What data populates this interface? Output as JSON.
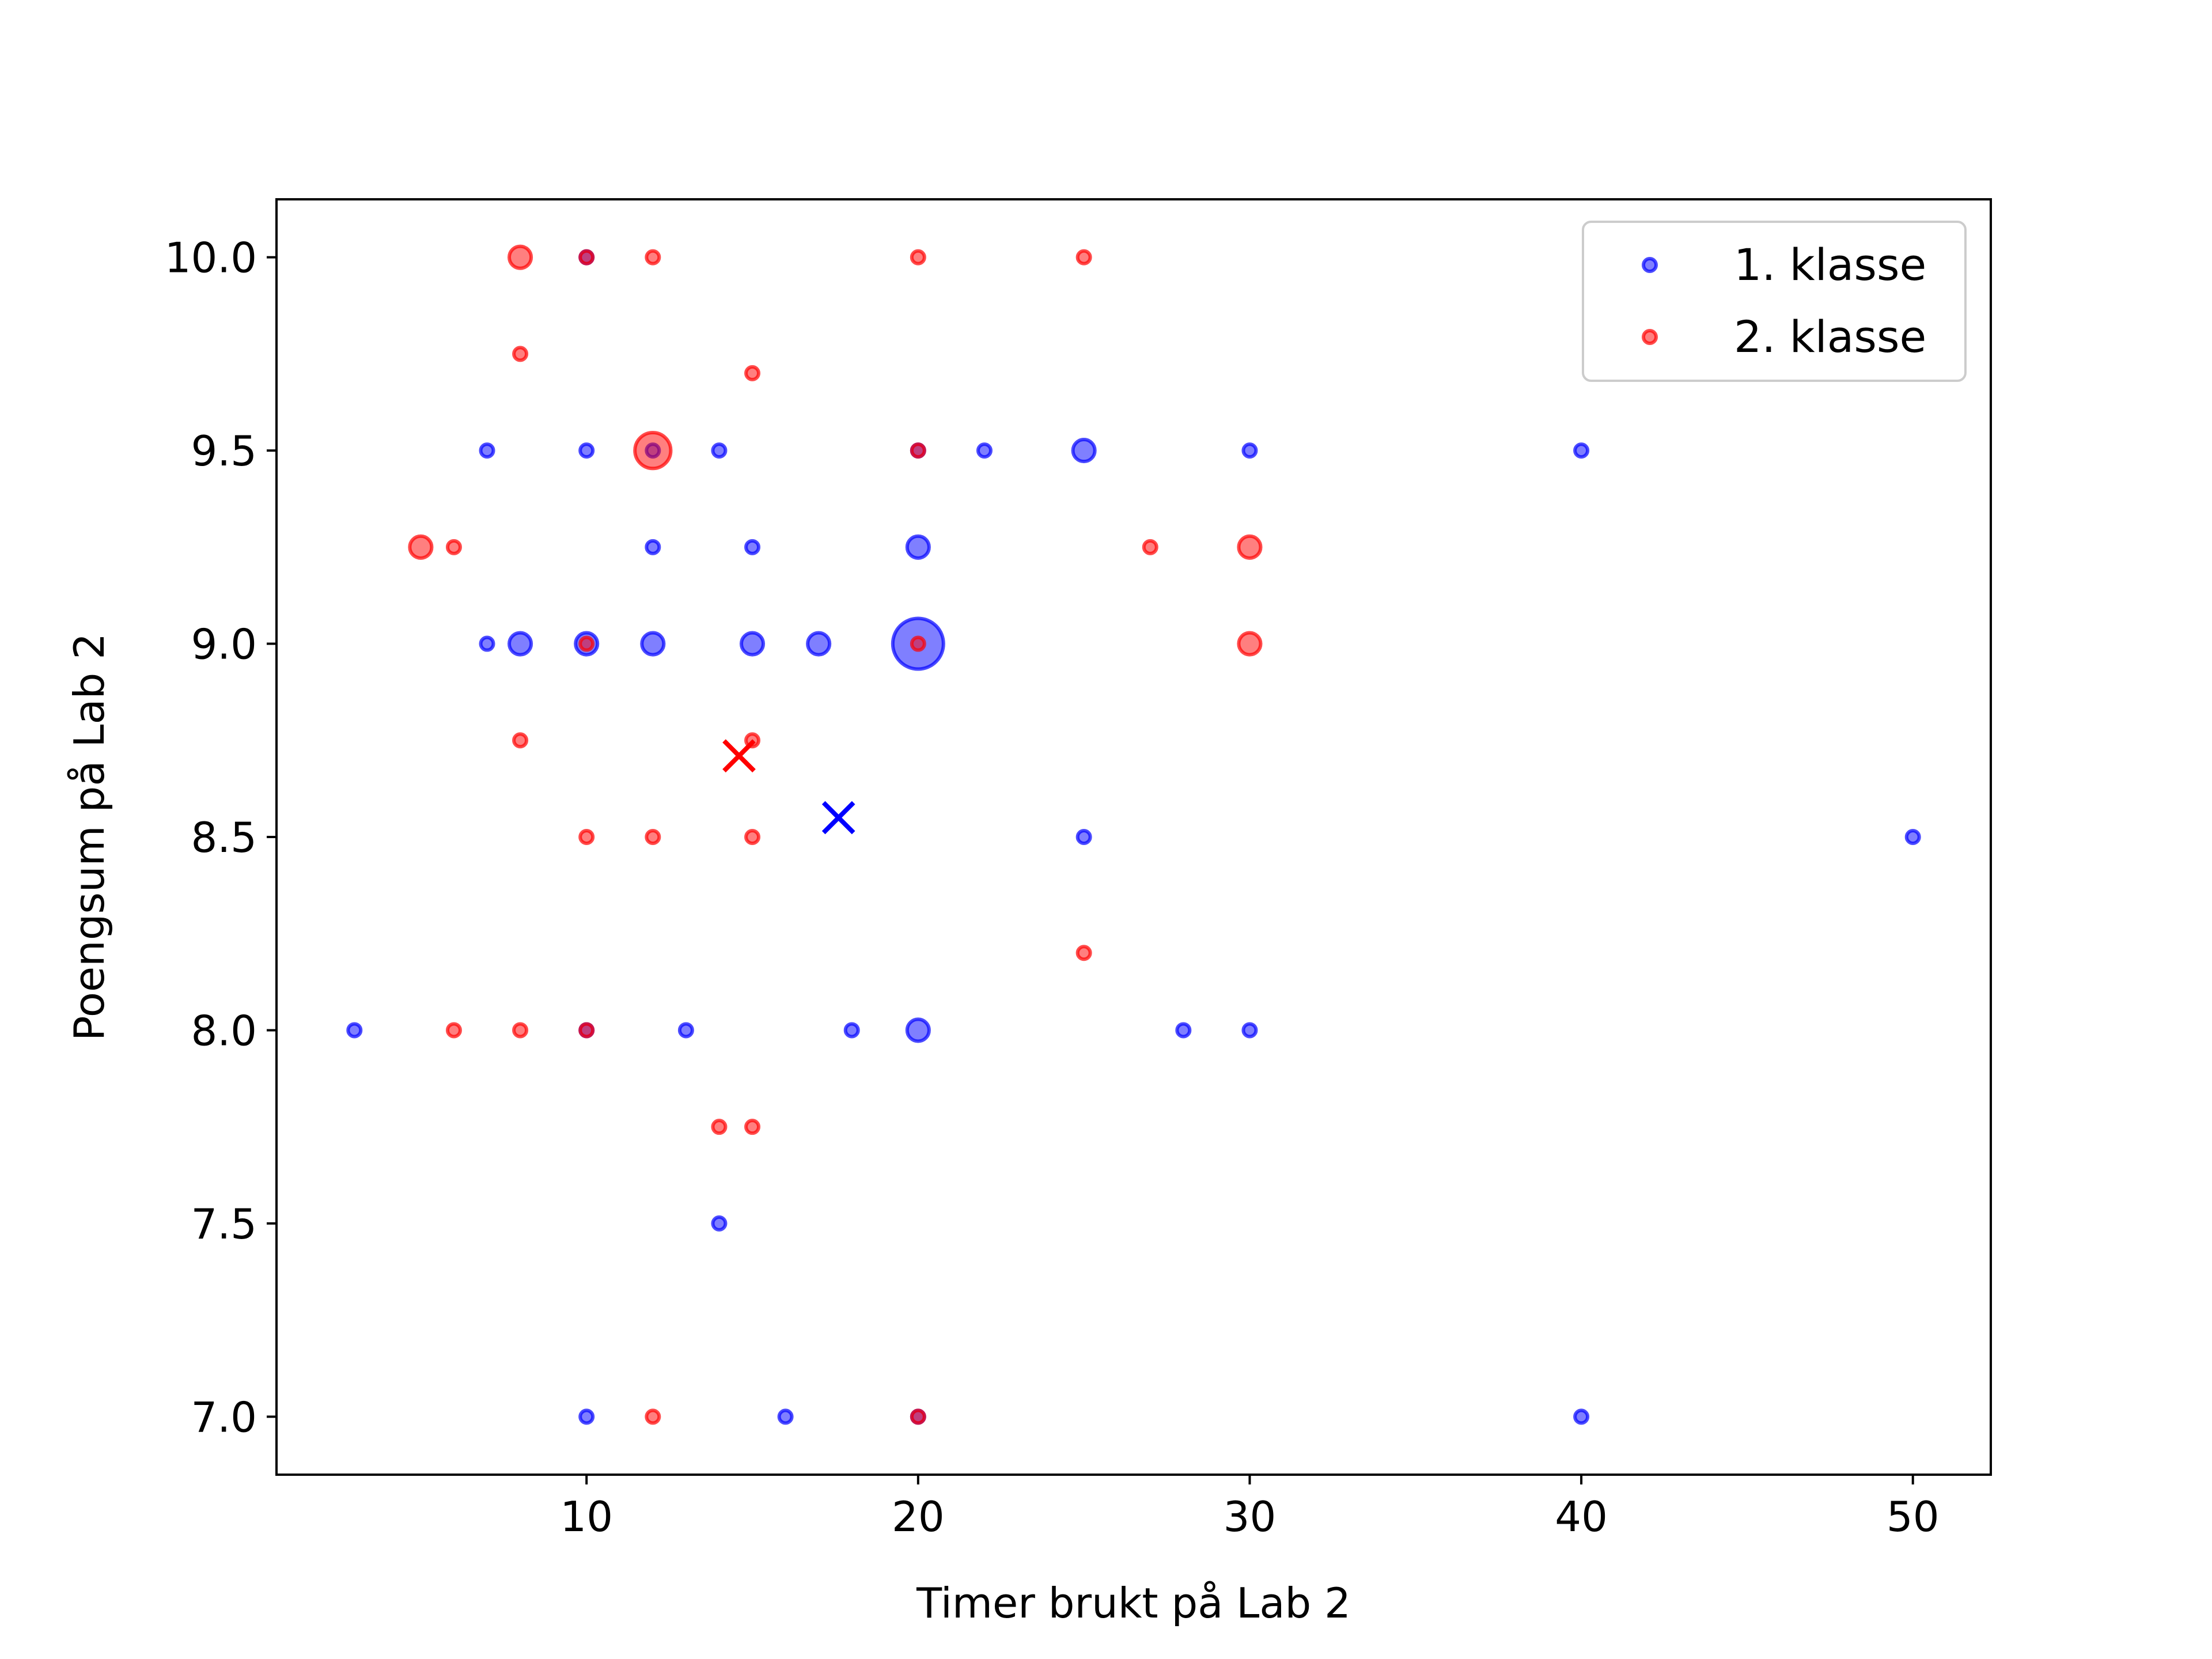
{
  "chart_data": {
    "type": "scatter",
    "title": "",
    "xlabel": "Timer brukt på Lab 2",
    "ylabel": "Poengsum på Lab 2",
    "xlim": [
      0.65,
      52.35
    ],
    "ylim": [
      6.85,
      10.15
    ],
    "xticks": [
      10,
      20,
      30,
      40,
      50
    ],
    "yticks": [
      7.0,
      7.5,
      8.0,
      8.5,
      9.0,
      9.5,
      10.0
    ],
    "xtick_labels": [
      "10",
      "20",
      "30",
      "40",
      "50"
    ],
    "ytick_labels": [
      "7.0",
      "7.5",
      "8.0",
      "8.5",
      "9.0",
      "9.5",
      "10.0"
    ],
    "grid": false,
    "legend_position": "top-right",
    "series": [
      {
        "name": "1. klasse",
        "color": "#0000ff",
        "points": [
          {
            "x": 10,
            "y": 10.0,
            "n": 1
          },
          {
            "x": 7,
            "y": 9.5,
            "n": 1
          },
          {
            "x": 10,
            "y": 9.5,
            "n": 1
          },
          {
            "x": 12,
            "y": 9.5,
            "n": 1
          },
          {
            "x": 14,
            "y": 9.5,
            "n": 1
          },
          {
            "x": 20,
            "y": 9.5,
            "n": 1
          },
          {
            "x": 22,
            "y": 9.5,
            "n": 1
          },
          {
            "x": 25,
            "y": 9.5,
            "n": 3
          },
          {
            "x": 30,
            "y": 9.5,
            "n": 1
          },
          {
            "x": 40,
            "y": 9.5,
            "n": 1
          },
          {
            "x": 12,
            "y": 9.25,
            "n": 1
          },
          {
            "x": 15,
            "y": 9.25,
            "n": 1
          },
          {
            "x": 20,
            "y": 9.25,
            "n": 3
          },
          {
            "x": 7,
            "y": 9.0,
            "n": 1
          },
          {
            "x": 8,
            "y": 9.0,
            "n": 3
          },
          {
            "x": 10,
            "y": 9.0,
            "n": 3
          },
          {
            "x": 12,
            "y": 9.0,
            "n": 3
          },
          {
            "x": 15,
            "y": 9.0,
            "n": 3
          },
          {
            "x": 17,
            "y": 9.0,
            "n": 3
          },
          {
            "x": 20,
            "y": 9.0,
            "n": 16
          },
          {
            "x": 25,
            "y": 8.5,
            "n": 1
          },
          {
            "x": 50,
            "y": 8.5,
            "n": 1
          },
          {
            "x": 3,
            "y": 8.0,
            "n": 1
          },
          {
            "x": 10,
            "y": 8.0,
            "n": 1
          },
          {
            "x": 13,
            "y": 8.0,
            "n": 1
          },
          {
            "x": 18,
            "y": 8.0,
            "n": 1
          },
          {
            "x": 20,
            "y": 8.0,
            "n": 3
          },
          {
            "x": 28,
            "y": 8.0,
            "n": 1
          },
          {
            "x": 30,
            "y": 8.0,
            "n": 1
          },
          {
            "x": 14,
            "y": 7.5,
            "n": 1
          },
          {
            "x": 10,
            "y": 7.0,
            "n": 1
          },
          {
            "x": 16,
            "y": 7.0,
            "n": 1
          },
          {
            "x": 20,
            "y": 7.0,
            "n": 1
          },
          {
            "x": 40,
            "y": 7.0,
            "n": 1
          }
        ],
        "mean": {
          "x": 17.6,
          "y": 8.55
        }
      },
      {
        "name": "2. klasse",
        "color": "#ff0000",
        "points": [
          {
            "x": 8,
            "y": 10.0,
            "n": 3
          },
          {
            "x": 10,
            "y": 10.0,
            "n": 1
          },
          {
            "x": 12,
            "y": 10.0,
            "n": 1
          },
          {
            "x": 20,
            "y": 10.0,
            "n": 1
          },
          {
            "x": 25,
            "y": 10.0,
            "n": 1
          },
          {
            "x": 8,
            "y": 9.75,
            "n": 1
          },
          {
            "x": 15,
            "y": 9.7,
            "n": 1
          },
          {
            "x": 12,
            "y": 9.5,
            "n": 8
          },
          {
            "x": 20,
            "y": 9.5,
            "n": 1
          },
          {
            "x": 5,
            "y": 9.25,
            "n": 3
          },
          {
            "x": 6,
            "y": 9.25,
            "n": 1
          },
          {
            "x": 27,
            "y": 9.25,
            "n": 1
          },
          {
            "x": 30,
            "y": 9.25,
            "n": 3
          },
          {
            "x": 10,
            "y": 9.0,
            "n": 1
          },
          {
            "x": 20,
            "y": 9.0,
            "n": 1
          },
          {
            "x": 30,
            "y": 9.0,
            "n": 3
          },
          {
            "x": 8,
            "y": 8.75,
            "n": 1
          },
          {
            "x": 15,
            "y": 8.75,
            "n": 1
          },
          {
            "x": 10,
            "y": 8.5,
            "n": 1
          },
          {
            "x": 12,
            "y": 8.5,
            "n": 1
          },
          {
            "x": 15,
            "y": 8.5,
            "n": 1
          },
          {
            "x": 25,
            "y": 8.2,
            "n": 1
          },
          {
            "x": 6,
            "y": 8.0,
            "n": 1
          },
          {
            "x": 8,
            "y": 8.0,
            "n": 1
          },
          {
            "x": 10,
            "y": 8.0,
            "n": 1
          },
          {
            "x": 14,
            "y": 7.75,
            "n": 1
          },
          {
            "x": 15,
            "y": 7.75,
            "n": 1
          },
          {
            "x": 12,
            "y": 7.0,
            "n": 1
          },
          {
            "x": 20,
            "y": 7.0,
            "n": 1
          }
        ],
        "mean": {
          "x": 14.6,
          "y": 8.71
        }
      }
    ]
  }
}
